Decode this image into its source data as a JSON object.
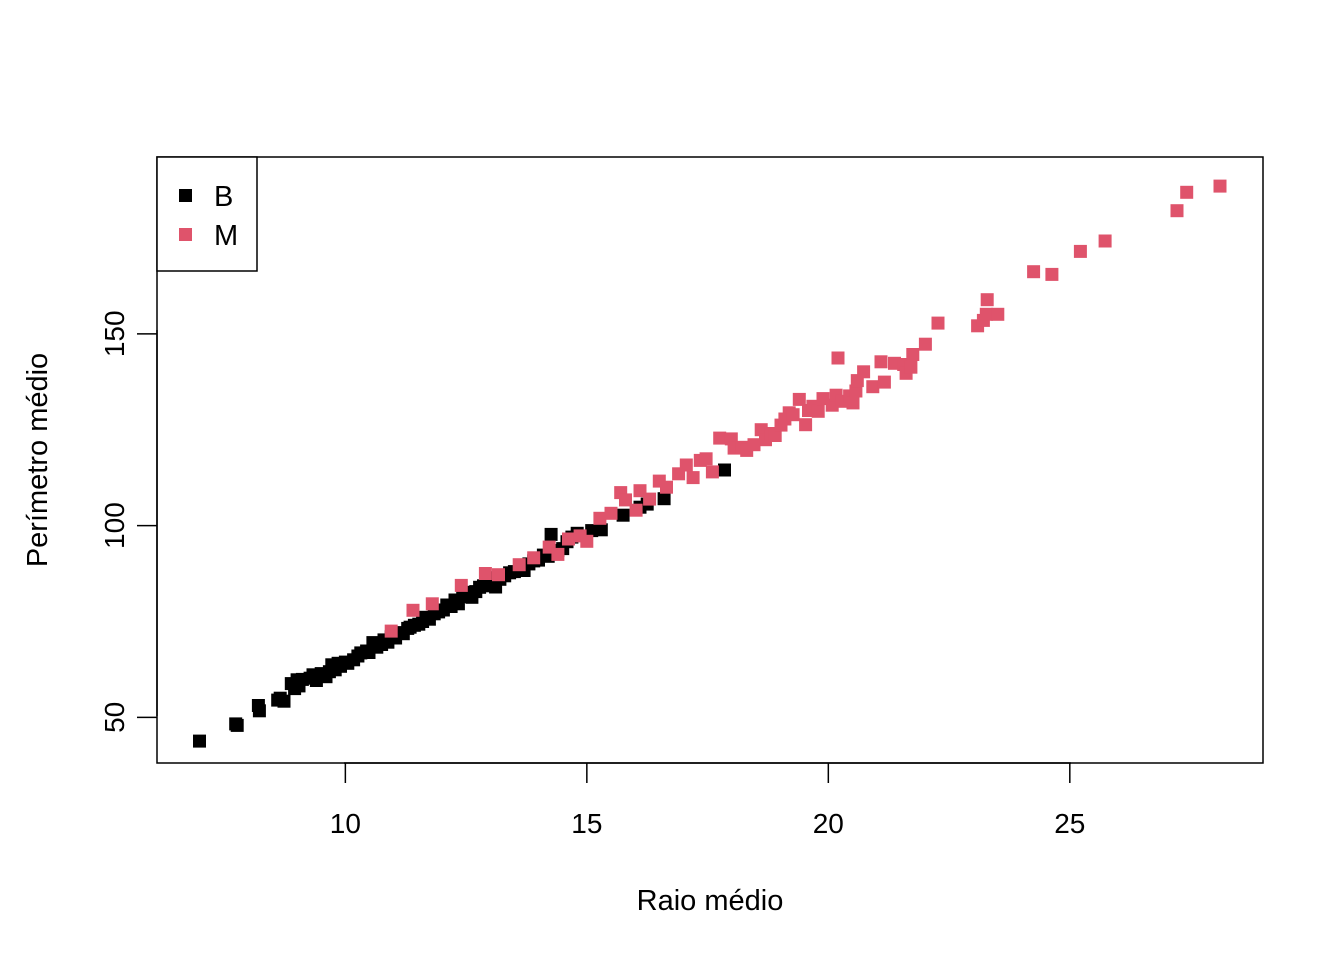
{
  "chart_data": {
    "type": "scatter",
    "xlabel": "Raio médio",
    "ylabel": "Perímetro médio",
    "xlim": [
      6.1,
      29.0
    ],
    "ylim": [
      38.1,
      196.1
    ],
    "x_ticks": [
      10,
      15,
      20,
      25
    ],
    "y_ticks": [
      50,
      100,
      150
    ],
    "grid": false,
    "legend_position": "top-left",
    "marker": "filled-square",
    "series": [
      {
        "name": "B",
        "color": "#000000",
        "x": [
          6.98,
          7.73,
          7.76,
          8.2,
          8.22,
          8.6,
          8.65,
          8.73,
          8.88,
          8.95,
          9.0,
          9.04,
          9.11,
          9.27,
          9.33,
          9.4,
          9.5,
          9.6,
          9.67,
          9.72,
          9.79,
          9.85,
          9.9,
          10.0,
          10.05,
          10.17,
          10.26,
          10.32,
          10.44,
          10.49,
          10.57,
          10.65,
          10.75,
          10.8,
          10.88,
          10.95,
          11.04,
          11.13,
          11.2,
          11.29,
          11.34,
          11.43,
          11.52,
          11.6,
          11.66,
          11.74,
          11.84,
          11.93,
          12.03,
          12.1,
          12.19,
          12.27,
          12.34,
          12.43,
          12.5,
          12.62,
          12.7,
          12.78,
          12.86,
          12.96,
          13.04,
          13.11,
          13.2,
          13.3,
          13.4,
          13.5,
          13.61,
          13.7,
          13.8,
          13.9,
          14.0,
          14.1,
          14.2,
          14.26,
          14.4,
          14.5,
          14.59,
          14.69,
          14.8,
          15.1,
          15.3,
          15.75,
          16.1,
          16.25,
          16.6,
          17.85
        ],
        "y": [
          43.8,
          48.3,
          47.9,
          53.1,
          51.7,
          54.5,
          55.0,
          54.2,
          58.8,
          57.5,
          59.8,
          58.2,
          59.9,
          60.2,
          61.1,
          59.6,
          61.4,
          60.6,
          61.9,
          63.7,
          62.4,
          64.1,
          63.3,
          64.4,
          64.1,
          65.0,
          66.0,
          66.8,
          67.3,
          66.9,
          69.5,
          68.3,
          69.0,
          70.2,
          69.6,
          71.0,
          70.7,
          72.1,
          71.8,
          73.2,
          73.5,
          74.0,
          74.3,
          75.0,
          76.1,
          75.6,
          77.0,
          77.5,
          78.0,
          79.3,
          78.9,
          80.6,
          79.6,
          81.5,
          82.6,
          81.3,
          82.8,
          83.9,
          84.3,
          85.0,
          86.4,
          84.0,
          86.0,
          86.9,
          87.7,
          88.0,
          88.9,
          88.3,
          90.0,
          90.8,
          91.0,
          92.3,
          92.0,
          97.7,
          93.5,
          94.0,
          95.8,
          97.0,
          98.0,
          98.7,
          98.9,
          102.7,
          104.8,
          105.6,
          107.0,
          114.5
        ]
      },
      {
        "name": "M",
        "color": "#DF536B",
        "x": [
          10.95,
          11.4,
          11.8,
          12.4,
          12.9,
          13.17,
          13.6,
          13.9,
          14.22,
          14.4,
          14.62,
          14.86,
          15.0,
          15.27,
          15.5,
          15.7,
          15.8,
          16.02,
          16.1,
          16.3,
          16.5,
          16.65,
          16.9,
          17.06,
          17.2,
          17.35,
          17.47,
          17.6,
          17.75,
          17.99,
          18.05,
          18.22,
          18.31,
          18.46,
          18.61,
          18.7,
          18.81,
          18.9,
          19.02,
          19.1,
          19.19,
          19.27,
          19.4,
          19.53,
          19.59,
          19.68,
          19.79,
          19.89,
          20.08,
          20.16,
          20.2,
          20.29,
          20.44,
          20.51,
          20.57,
          20.6,
          20.73,
          20.92,
          21.09,
          21.16,
          21.37,
          21.56,
          21.61,
          21.71,
          21.75,
          22.01,
          22.27,
          23.09,
          23.21,
          23.27,
          23.29,
          23.51,
          24.25,
          24.63,
          25.22,
          25.73,
          27.22,
          27.42,
          28.11
        ],
        "y": [
          72.5,
          77.9,
          79.6,
          84.4,
          87.5,
          87.2,
          89.8,
          91.6,
          94.4,
          92.5,
          96.5,
          97.3,
          95.9,
          101.9,
          103.2,
          108.6,
          106.7,
          104.0,
          109.1,
          106.9,
          111.6,
          110.0,
          113.5,
          115.8,
          112.5,
          117.0,
          117.4,
          114.0,
          122.8,
          122.6,
          120.2,
          120.4,
          119.6,
          121.1,
          125.0,
          122.4,
          124.0,
          123.5,
          126.2,
          127.8,
          129.4,
          128.9,
          132.9,
          126.3,
          130.0,
          131.1,
          129.8,
          133.1,
          131.4,
          134.0,
          143.7,
          132.4,
          133.8,
          132.0,
          135.1,
          137.8,
          140.1,
          136.2,
          142.7,
          137.4,
          142.3,
          142.0,
          139.7,
          141.3,
          144.6,
          147.3,
          152.8,
          152.1,
          153.5,
          155.1,
          158.9,
          155.1,
          166.2,
          165.5,
          171.5,
          174.2,
          182.1,
          186.9,
          188.5
        ]
      }
    ]
  }
}
